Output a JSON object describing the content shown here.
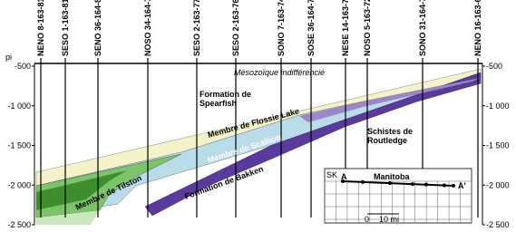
{
  "axis": {
    "unit": "pi",
    "ticks": [
      "-500",
      "-1 000",
      "-1 500",
      "-2 000",
      "-2 500"
    ]
  },
  "wells": [
    "NENO 8-163-81",
    "SESO 1-163-81",
    "SENO 36-164-80",
    "NOSO 34-164-78",
    "SESO 2-163-77",
    "SESO 2-163-76",
    "SONO 7-163-74",
    "SOSE 36-164-74",
    "NESE 14-163-73",
    "NOSO 5-163-72",
    "SONO 31-164-70",
    "NENO 16-163-69"
  ],
  "labels": {
    "mesozoic": "Mésozoïque indifférencié",
    "spearfish": "Formation de\nSpearfish",
    "flossie": "Membre de Flossie Lake",
    "scallion": "Membre de Scallion",
    "bakken": "Formation de Bakken",
    "tilston": "Membre de Tilston",
    "routledge": "Schistes de\nRoutledge"
  },
  "inset": {
    "province": "SK",
    "state": "Manitoba",
    "start": "A",
    "end": "A'",
    "scale_zero": "0",
    "scale_len": "10 mi"
  }
}
